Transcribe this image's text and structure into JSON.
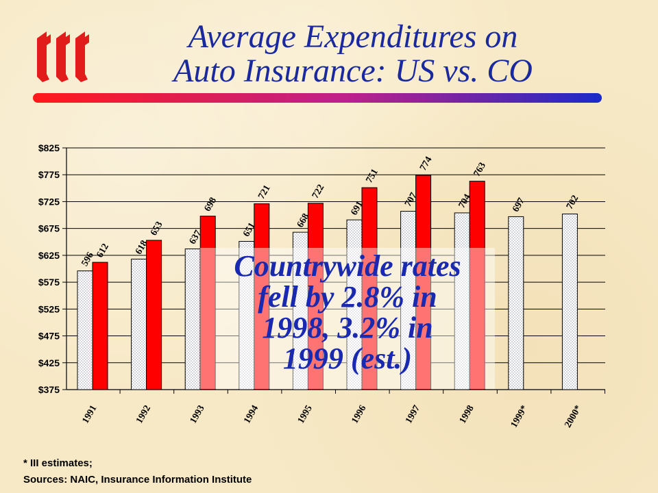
{
  "title": {
    "line1": "Average Expenditures on",
    "line2": "Auto Insurance: US vs. CO"
  },
  "logo": {
    "icon": "iii-logo-icon",
    "color": "#e21b1b"
  },
  "callout": {
    "line1": "Countrywide rates",
    "line2": "fell by 2.8% in",
    "line3": "1998, 3.2% in",
    "line4": "1999 (est.)"
  },
  "footnotes": {
    "note": "*  III estimates;",
    "sources": "Sources:  NAIC, Insurance Information Institute"
  },
  "colors": {
    "us": "#ffffff",
    "co": "#ff0000",
    "title": "#1a2a9e",
    "callout": "#1a2ab0"
  },
  "chart_data": {
    "type": "bar",
    "categories": [
      "1991",
      "1992",
      "1993",
      "1994",
      "1995",
      "1996",
      "1997",
      "1998",
      "1999*",
      "2000*"
    ],
    "series": [
      {
        "values": [
          596,
          618,
          637,
          651,
          668,
          691,
          707,
          704,
          697,
          702
        ]
      },
      {
        "values": [
          612,
          653,
          698,
          721,
          722,
          751,
          774,
          763,
          null,
          null
        ]
      }
    ],
    "yticks": [
      375,
      425,
      475,
      525,
      575,
      625,
      675,
      725,
      775,
      825
    ],
    "ylim": [
      375,
      825
    ],
    "ytick_prefix": "$",
    "grid": true,
    "legend": "none"
  }
}
